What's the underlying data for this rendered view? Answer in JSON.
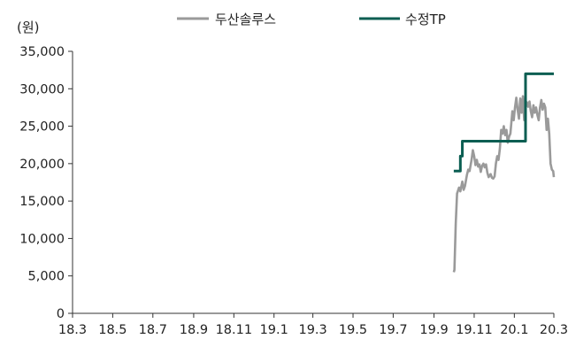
{
  "chart_data": {
    "type": "line",
    "y_unit_label": "(원)",
    "ylim": [
      0,
      35000
    ],
    "y_ticks": [
      0,
      5000,
      10000,
      15000,
      20000,
      25000,
      30000,
      35000
    ],
    "y_tick_labels": [
      "0",
      "5,000",
      "10,000",
      "15,000",
      "20,000",
      "25,000",
      "30,000",
      "35,000"
    ],
    "xlim": [
      "2018-03-01",
      "2020-03-31"
    ],
    "x_ticks": [
      "2018-03-01",
      "2018-05-01",
      "2018-07-01",
      "2018-09-01",
      "2018-11-01",
      "2019-01-01",
      "2019-03-01",
      "2019-05-01",
      "2019-07-01",
      "2019-09-01",
      "2019-11-01",
      "2020-01-01",
      "2020-03-01"
    ],
    "x_tick_labels": [
      "18.3",
      "18.5",
      "18.7",
      "18.9",
      "18.11",
      "19.1",
      "19.3",
      "19.5",
      "19.7",
      "19.9",
      "19.11",
      "20.1",
      "20.3"
    ],
    "grid": false,
    "legend_position": "top",
    "series": [
      {
        "name": "두산솔루스",
        "color": "#9a9a9a",
        "step": false,
        "points": [
          [
            "2019-10-01",
            5500
          ],
          [
            "2019-10-02",
            5800
          ],
          [
            "2019-10-04",
            12000
          ],
          [
            "2019-10-06",
            16000
          ],
          [
            "2019-10-09",
            16800
          ],
          [
            "2019-10-11",
            16300
          ],
          [
            "2019-10-14",
            17600
          ],
          [
            "2019-10-16",
            16500
          ],
          [
            "2019-10-18",
            17000
          ],
          [
            "2019-10-21",
            18500
          ],
          [
            "2019-10-23",
            19200
          ],
          [
            "2019-10-25",
            19000
          ],
          [
            "2019-10-28",
            20500
          ],
          [
            "2019-10-30",
            21800
          ],
          [
            "2019-11-01",
            21000
          ],
          [
            "2019-11-03",
            19800
          ],
          [
            "2019-11-05",
            20500
          ],
          [
            "2019-11-07",
            19600
          ],
          [
            "2019-11-09",
            19900
          ],
          [
            "2019-11-11",
            18900
          ],
          [
            "2019-11-13",
            19700
          ],
          [
            "2019-11-15",
            20000
          ],
          [
            "2019-11-17",
            19500
          ],
          [
            "2019-11-19",
            19900
          ],
          [
            "2019-11-21",
            18800
          ],
          [
            "2019-11-23",
            18200
          ],
          [
            "2019-11-26",
            18600
          ],
          [
            "2019-11-28",
            18100
          ],
          [
            "2019-11-30",
            18000
          ],
          [
            "2019-12-02",
            18300
          ],
          [
            "2019-12-04",
            20000
          ],
          [
            "2019-12-06",
            21000
          ],
          [
            "2019-12-08",
            20500
          ],
          [
            "2019-12-10",
            22000
          ],
          [
            "2019-12-12",
            24500
          ],
          [
            "2019-12-14",
            24000
          ],
          [
            "2019-12-16",
            25000
          ],
          [
            "2019-12-18",
            23800
          ],
          [
            "2019-12-20",
            24500
          ],
          [
            "2019-12-22",
            22800
          ],
          [
            "2019-12-24",
            23600
          ],
          [
            "2019-12-26",
            24000
          ],
          [
            "2019-12-29",
            27000
          ],
          [
            "2019-12-31",
            25800
          ],
          [
            "2020-01-02",
            27500
          ],
          [
            "2020-01-04",
            28800
          ],
          [
            "2020-01-06",
            27200
          ],
          [
            "2020-01-08",
            26000
          ],
          [
            "2020-01-10",
            28700
          ],
          [
            "2020-01-12",
            26800
          ],
          [
            "2020-01-14",
            29000
          ],
          [
            "2020-01-16",
            25800
          ],
          [
            "2020-01-18",
            27500
          ],
          [
            "2020-01-20",
            28200
          ],
          [
            "2020-01-22",
            27600
          ],
          [
            "2020-01-24",
            28300
          ],
          [
            "2020-01-26",
            27000
          ],
          [
            "2020-01-28",
            26200
          ],
          [
            "2020-01-30",
            27800
          ],
          [
            "2020-02-01",
            26800
          ],
          [
            "2020-02-03",
            27500
          ],
          [
            "2020-02-05",
            26500
          ],
          [
            "2020-02-07",
            25800
          ],
          [
            "2020-02-09",
            27500
          ],
          [
            "2020-02-11",
            28500
          ],
          [
            "2020-02-13",
            27200
          ],
          [
            "2020-02-15",
            28000
          ],
          [
            "2020-02-17",
            27500
          ],
          [
            "2020-02-19",
            24500
          ],
          [
            "2020-02-21",
            26000
          ],
          [
            "2020-02-23",
            24000
          ],
          [
            "2020-02-25",
            20000
          ],
          [
            "2020-02-27",
            19200
          ],
          [
            "2020-02-29",
            19000
          ],
          [
            "2020-03-02",
            18200
          ]
        ]
      },
      {
        "name": "수정TP",
        "color": "#0b5e52",
        "step": true,
        "points": [
          [
            "2019-10-01",
            19000
          ],
          [
            "2019-10-11",
            21000
          ],
          [
            "2019-10-14",
            23000
          ],
          [
            "2020-01-18",
            32000
          ],
          [
            "2020-03-31",
            32000
          ]
        ]
      }
    ]
  }
}
